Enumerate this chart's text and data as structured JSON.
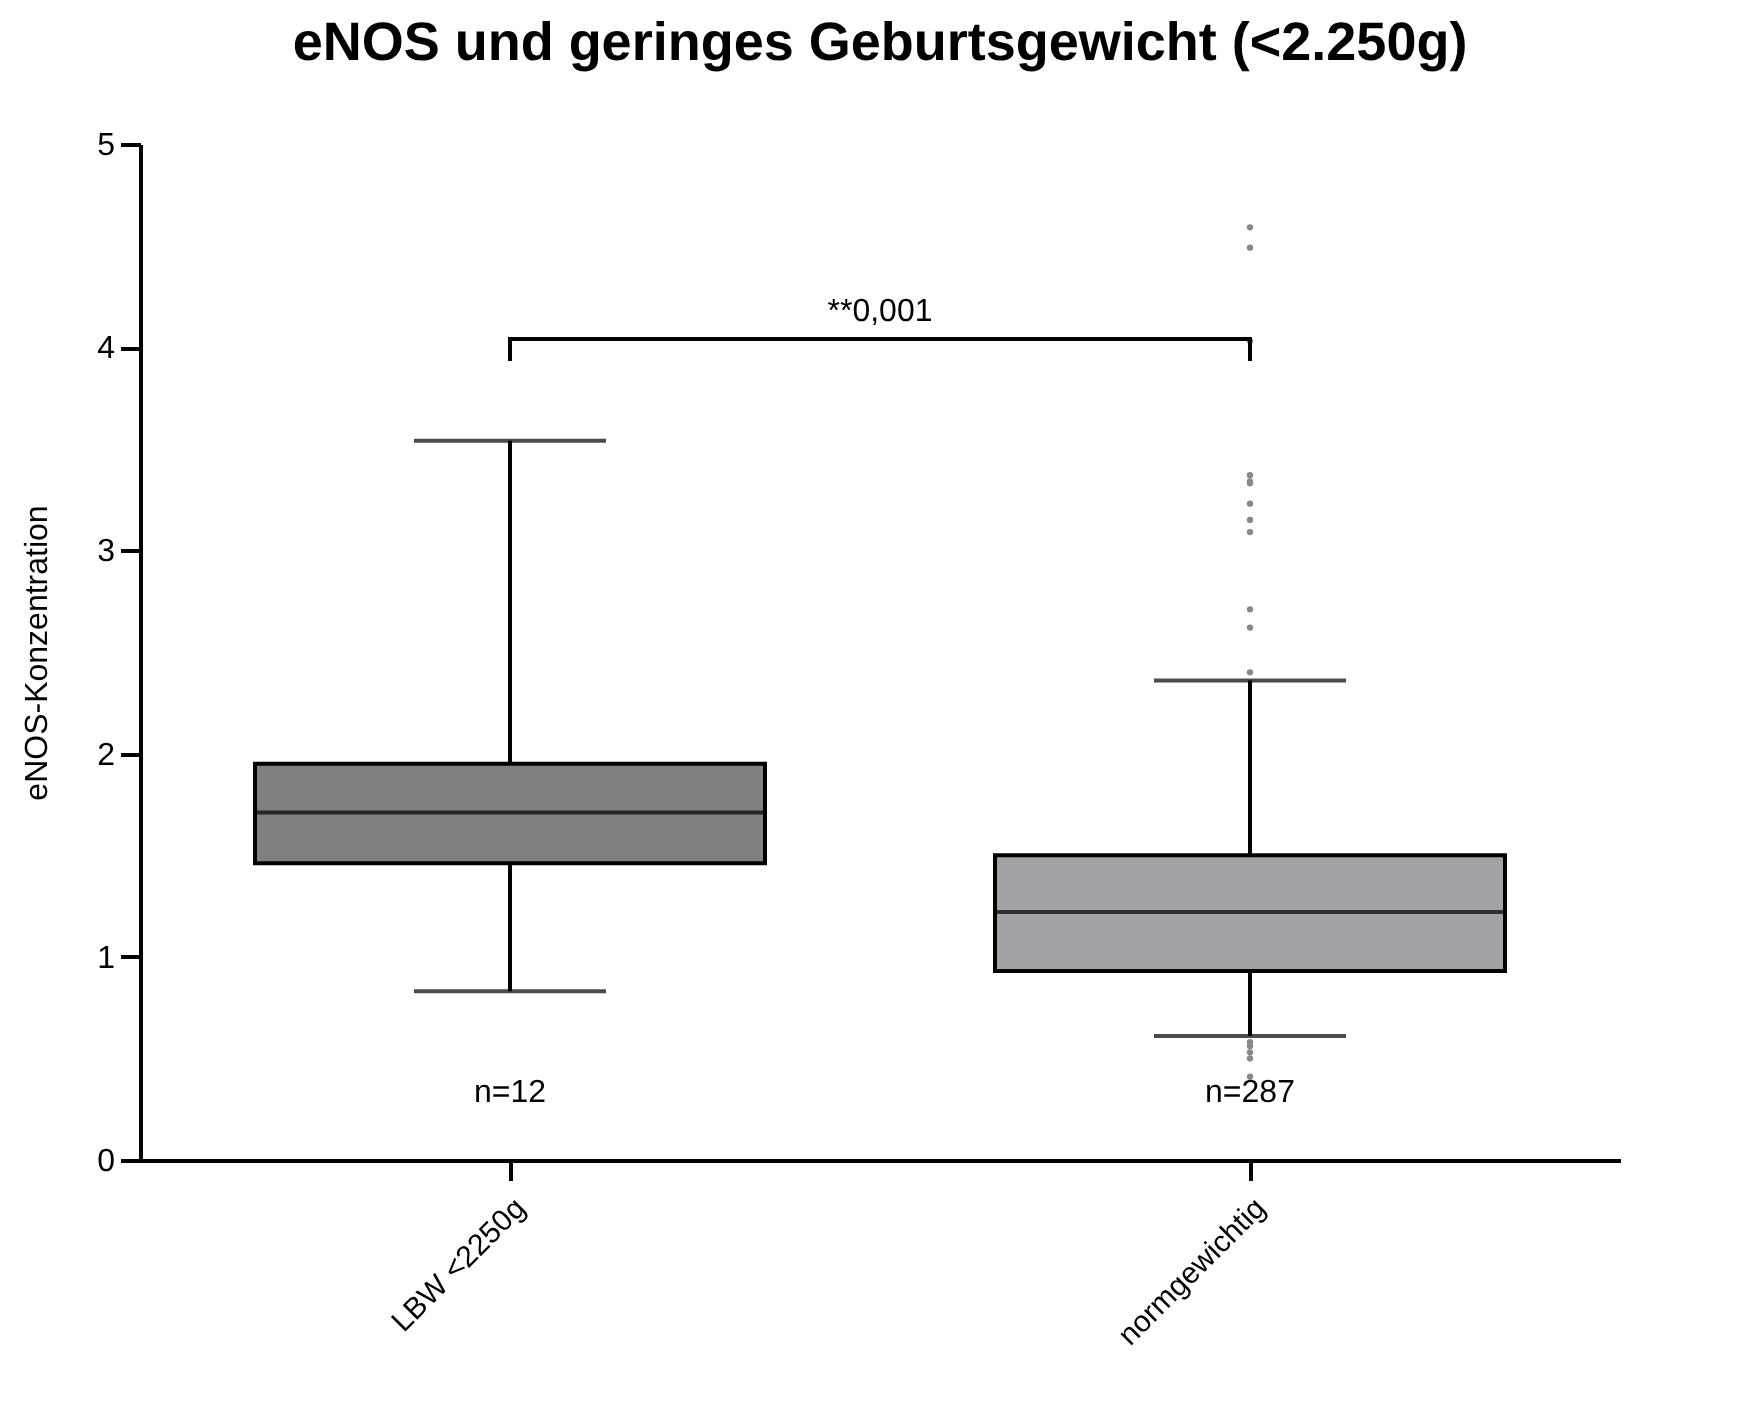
{
  "chart_data": {
    "type": "box",
    "title": "eNOS und geringes Geburtsgewicht (<2.250g)",
    "ylabel": "eNOS-Konzentration",
    "categories": [
      "LBW <2250g",
      "normgewichtig"
    ],
    "ylim": [
      0,
      5
    ],
    "yticks": [
      0,
      1,
      2,
      3,
      4,
      5
    ],
    "grid": false,
    "colors": [
      "#808080",
      "#a2a2a6"
    ],
    "boxes": [
      {
        "low": 0.83,
        "q1": 1.46,
        "median": 1.71,
        "q3": 1.95,
        "high": 3.54
      },
      {
        "low": 0.61,
        "q1": 0.93,
        "median": 1.22,
        "q3": 1.5,
        "high": 2.36,
        "outliers": [
          4.59,
          4.49,
          4.03,
          3.37,
          3.34,
          3.33,
          3.23,
          3.15,
          3.09,
          2.71,
          2.62,
          2.4,
          0.58,
          0.56,
          0.53,
          0.5,
          0.41
        ]
      }
    ],
    "annotations": [
      "**0,001",
      "n=12",
      "n=287"
    ]
  }
}
